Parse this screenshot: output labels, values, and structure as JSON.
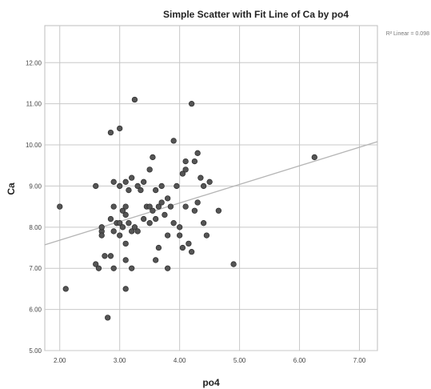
{
  "chart_data": {
    "type": "scatter",
    "title": "Simple Scatter with Fit Line of Ca by po4",
    "xlabel": "po4",
    "ylabel": "Ca",
    "xlim": [
      1.75,
      7.3
    ],
    "ylim": [
      5.0,
      12.9
    ],
    "x_ticks": [
      "2.00",
      "3.00",
      "4.00",
      "5.00",
      "6.00",
      "7.00"
    ],
    "y_ticks": [
      "5.00",
      "6.00",
      "7.00",
      "8.00",
      "9.00",
      "10.00",
      "11.00",
      "12.00"
    ],
    "grid": true,
    "fit_line": {
      "label": "R² Linear = 0.098",
      "intercept": 6.78,
      "slope": 0.452
    },
    "point_color": "#555555",
    "line_color": "#b5b5b5",
    "points": [
      [
        2.0,
        8.5
      ],
      [
        2.1,
        6.5
      ],
      [
        2.6,
        9.0
      ],
      [
        2.6,
        7.1
      ],
      [
        2.65,
        7.0
      ],
      [
        2.7,
        7.9
      ],
      [
        2.7,
        7.8
      ],
      [
        2.7,
        8.0
      ],
      [
        2.75,
        7.3
      ],
      [
        2.8,
        5.8
      ],
      [
        2.85,
        10.3
      ],
      [
        2.85,
        8.2
      ],
      [
        2.85,
        7.3
      ],
      [
        2.9,
        9.1
      ],
      [
        2.9,
        8.5
      ],
      [
        2.9,
        7.9
      ],
      [
        2.9,
        7.0
      ],
      [
        2.95,
        8.1
      ],
      [
        3.0,
        10.4
      ],
      [
        3.0,
        9.0
      ],
      [
        3.0,
        8.1
      ],
      [
        3.0,
        7.8
      ],
      [
        3.05,
        8.4
      ],
      [
        3.05,
        8.0
      ],
      [
        3.1,
        9.1
      ],
      [
        3.1,
        8.5
      ],
      [
        3.1,
        8.3
      ],
      [
        3.1,
        7.6
      ],
      [
        3.1,
        7.2
      ],
      [
        3.1,
        6.5
      ],
      [
        3.15,
        8.9
      ],
      [
        3.15,
        8.1
      ],
      [
        3.2,
        9.2
      ],
      [
        3.2,
        7.9
      ],
      [
        3.2,
        7.0
      ],
      [
        3.25,
        11.1
      ],
      [
        3.25,
        8.0
      ],
      [
        3.3,
        9.0
      ],
      [
        3.3,
        7.9
      ],
      [
        3.35,
        8.9
      ],
      [
        3.4,
        9.1
      ],
      [
        3.4,
        8.2
      ],
      [
        3.45,
        8.5
      ],
      [
        3.5,
        9.4
      ],
      [
        3.5,
        8.5
      ],
      [
        3.5,
        8.1
      ],
      [
        3.55,
        9.7
      ],
      [
        3.55,
        8.4
      ],
      [
        3.6,
        8.9
      ],
      [
        3.6,
        8.2
      ],
      [
        3.6,
        7.2
      ],
      [
        3.65,
        8.5
      ],
      [
        3.65,
        7.5
      ],
      [
        3.7,
        9.0
      ],
      [
        3.7,
        8.6
      ],
      [
        3.75,
        8.3
      ],
      [
        3.8,
        8.7
      ],
      [
        3.8,
        7.8
      ],
      [
        3.8,
        7.0
      ],
      [
        3.85,
        8.5
      ],
      [
        3.9,
        10.1
      ],
      [
        3.9,
        8.1
      ],
      [
        3.95,
        9.0
      ],
      [
        4.0,
        8.0
      ],
      [
        4.0,
        7.8
      ],
      [
        4.05,
        9.3
      ],
      [
        4.05,
        7.5
      ],
      [
        4.1,
        9.6
      ],
      [
        4.1,
        9.4
      ],
      [
        4.1,
        8.5
      ],
      [
        4.15,
        7.6
      ],
      [
        4.2,
        11.0
      ],
      [
        4.2,
        7.4
      ],
      [
        4.25,
        9.6
      ],
      [
        4.25,
        8.4
      ],
      [
        4.3,
        9.8
      ],
      [
        4.3,
        8.6
      ],
      [
        4.35,
        9.2
      ],
      [
        4.4,
        9.0
      ],
      [
        4.4,
        8.1
      ],
      [
        4.45,
        7.8
      ],
      [
        4.5,
        9.1
      ],
      [
        4.65,
        8.4
      ],
      [
        4.9,
        7.1
      ],
      [
        6.25,
        9.7
      ]
    ]
  }
}
